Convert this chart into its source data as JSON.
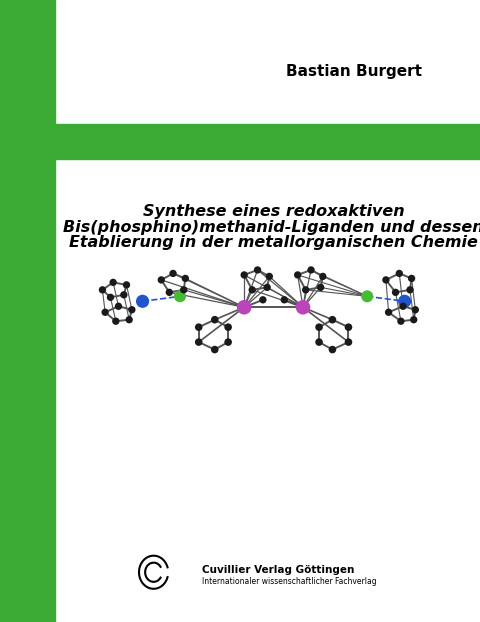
{
  "bg_color": "#ffffff",
  "green_bar_color": "#3aaa35",
  "author": "Bastian Burgert",
  "title_line1": "Synthese eines redoxaktiven",
  "title_line2": "Bis(phosphino)methanid-Liganden und dessen",
  "title_line3": "Etablierung in der metallorganischen Chemie",
  "publisher_name": "Cuvillier Verlag Göttingen",
  "publisher_sub": "Internationaler wissenschaftlicher Fachverlag",
  "node_black": "#1a1a1a",
  "node_blue": "#2255cc",
  "node_green": "#44bb33",
  "node_purple": "#bb44bb",
  "bond_color": "#555555"
}
